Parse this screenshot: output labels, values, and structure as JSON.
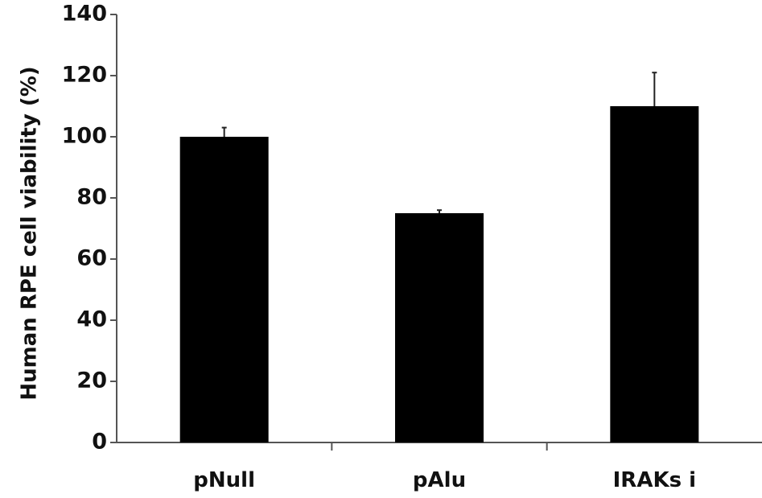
{
  "chart_data": {
    "type": "bar",
    "title": "",
    "xlabel": "",
    "ylabel": "Human RPE cell viability (%)",
    "categories": [
      "pNull",
      "pAlu",
      "IRAKs i"
    ],
    "values": [
      100,
      75,
      110
    ],
    "error": [
      3,
      1,
      11
    ],
    "ylim": [
      0,
      140
    ],
    "yticks": [
      0,
      20,
      40,
      60,
      80,
      100,
      120,
      140
    ],
    "grid": false,
    "legend": "none",
    "bar_color": "#000000"
  }
}
